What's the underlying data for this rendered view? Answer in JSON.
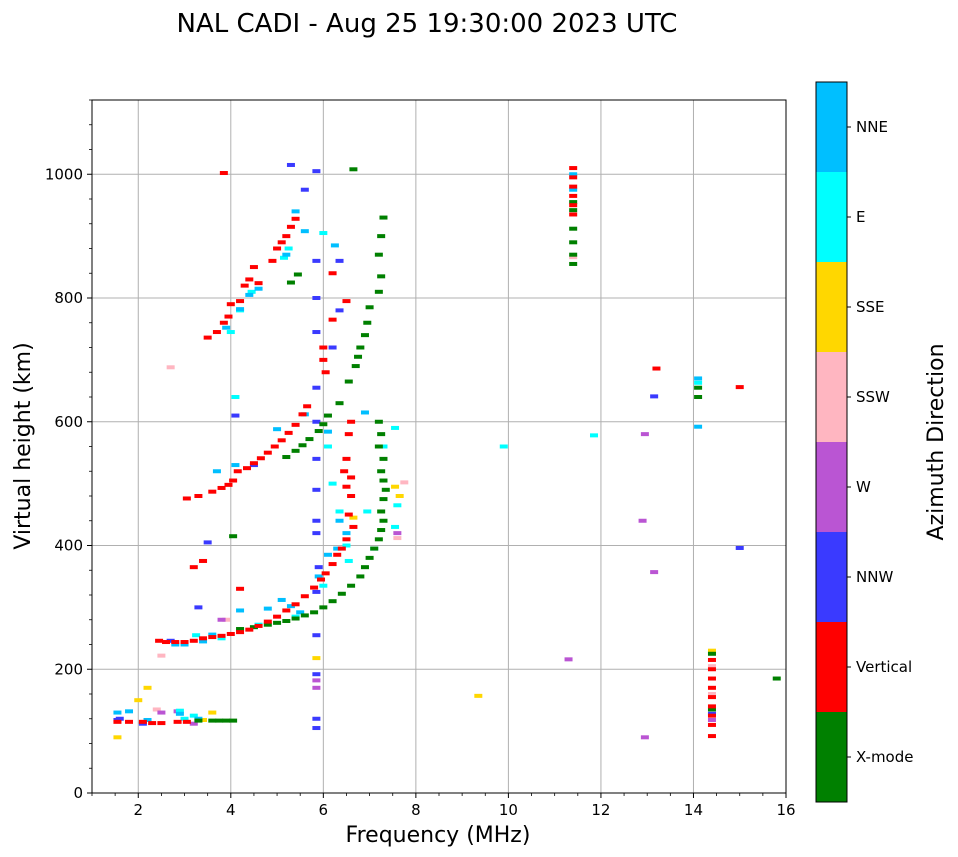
{
  "chart_data": {
    "type": "scatter",
    "title": "NAL CADI - Aug 25 19:30:00 2023 UTC",
    "xlabel": "Frequency (MHz)",
    "ylabel": "Virtual height (km)",
    "xlim": [
      1,
      16
    ],
    "ylim": [
      0,
      1120
    ],
    "xticks": [
      2,
      4,
      6,
      8,
      10,
      12,
      14,
      16
    ],
    "yticks": [
      0,
      200,
      400,
      600,
      800,
      1000
    ],
    "grid": true,
    "colorbar": {
      "title": "Azimuth Direction",
      "categories": [
        {
          "label": "NNE",
          "color": "#00bfff"
        },
        {
          "label": "E",
          "color": "#00ffff"
        },
        {
          "label": "SSE",
          "color": "#ffd700"
        },
        {
          "label": "SSW",
          "color": "#ffb6c1"
        },
        {
          "label": "W",
          "color": "#ba55d3"
        },
        {
          "label": "NNW",
          "color": "#3a3aff"
        },
        {
          "label": "Vertical",
          "color": "#ff0000"
        },
        {
          "label": "X-mode",
          "color": "#008000"
        }
      ]
    },
    "series": [
      {
        "name": "Vertical",
        "points": [
          [
            1.55,
            115
          ],
          [
            1.8,
            115
          ],
          [
            2.1,
            115
          ],
          [
            2.3,
            113
          ],
          [
            2.5,
            113
          ],
          [
            2.85,
            115
          ],
          [
            3.05,
            115
          ],
          [
            2.45,
            246
          ],
          [
            2.6,
            244
          ],
          [
            2.8,
            244
          ],
          [
            3.0,
            244
          ],
          [
            3.2,
            246
          ],
          [
            3.4,
            250
          ],
          [
            3.6,
            252
          ],
          [
            3.8,
            254
          ],
          [
            4.0,
            257
          ],
          [
            4.2,
            260
          ],
          [
            4.4,
            264
          ],
          [
            4.6,
            270
          ],
          [
            4.8,
            277
          ],
          [
            5.0,
            285
          ],
          [
            5.2,
            295
          ],
          [
            5.4,
            305
          ],
          [
            5.6,
            318
          ],
          [
            5.8,
            332
          ],
          [
            5.95,
            345
          ],
          [
            6.05,
            355
          ],
          [
            6.2,
            370
          ],
          [
            6.3,
            385
          ],
          [
            6.4,
            395
          ],
          [
            6.5,
            410
          ],
          [
            6.65,
            430
          ],
          [
            6.55,
            450
          ],
          [
            6.6,
            480
          ],
          [
            6.5,
            495
          ],
          [
            6.6,
            510
          ],
          [
            6.45,
            520
          ],
          [
            6.5,
            540
          ],
          [
            3.05,
            476
          ],
          [
            3.3,
            480
          ],
          [
            3.6,
            487
          ],
          [
            3.8,
            493
          ],
          [
            3.95,
            498
          ],
          [
            4.05,
            505
          ],
          [
            4.15,
            520
          ],
          [
            4.35,
            525
          ],
          [
            4.5,
            533
          ],
          [
            4.65,
            541
          ],
          [
            4.8,
            550
          ],
          [
            4.95,
            560
          ],
          [
            5.1,
            570
          ],
          [
            5.25,
            582
          ],
          [
            5.4,
            595
          ],
          [
            5.55,
            612
          ],
          [
            5.65,
            625
          ],
          [
            6.6,
            600
          ],
          [
            6.55,
            580
          ],
          [
            6.0,
            700
          ],
          [
            6.0,
            720
          ],
          [
            6.05,
            680
          ],
          [
            3.5,
            736
          ],
          [
            3.7,
            745
          ],
          [
            3.85,
            760
          ],
          [
            3.95,
            770
          ],
          [
            4.0,
            790
          ],
          [
            4.3,
            820
          ],
          [
            4.4,
            830
          ],
          [
            4.5,
            850
          ],
          [
            4.9,
            860
          ],
          [
            5.0,
            880
          ],
          [
            5.1,
            890
          ],
          [
            5.2,
            900
          ],
          [
            5.3,
            915
          ],
          [
            5.4,
            928
          ],
          [
            6.2,
            840
          ],
          [
            6.5,
            795
          ],
          [
            6.2,
            765
          ],
          [
            3.85,
            1002
          ],
          [
            4.2,
            795
          ],
          [
            4.6,
            824
          ],
          [
            3.2,
            365
          ],
          [
            3.4,
            375
          ],
          [
            4.2,
            330
          ],
          [
            11.4,
            1010
          ],
          [
            11.4,
            995
          ],
          [
            11.4,
            980
          ],
          [
            11.4,
            965
          ],
          [
            11.4,
            950
          ],
          [
            11.4,
            935
          ],
          [
            13.2,
            686
          ],
          [
            15.0,
            656
          ],
          [
            14.4,
            215
          ],
          [
            14.4,
            200
          ],
          [
            14.4,
            185
          ],
          [
            14.4,
            170
          ],
          [
            14.4,
            155
          ],
          [
            14.4,
            140
          ],
          [
            14.4,
            125
          ],
          [
            14.4,
            110
          ],
          [
            14.4,
            92
          ]
        ]
      },
      {
        "name": "X-mode",
        "points": [
          [
            3.6,
            117
          ],
          [
            3.75,
            117
          ],
          [
            3.9,
            117
          ],
          [
            4.05,
            117
          ],
          [
            3.3,
            117
          ],
          [
            4.2,
            265
          ],
          [
            4.5,
            268
          ],
          [
            4.8,
            272
          ],
          [
            5.0,
            275
          ],
          [
            5.2,
            278
          ],
          [
            5.4,
            282
          ],
          [
            5.6,
            287
          ],
          [
            5.8,
            292
          ],
          [
            6.0,
            300
          ],
          [
            6.2,
            310
          ],
          [
            6.4,
            322
          ],
          [
            6.6,
            335
          ],
          [
            6.8,
            350
          ],
          [
            6.9,
            365
          ],
          [
            7.0,
            380
          ],
          [
            7.1,
            395
          ],
          [
            7.2,
            410
          ],
          [
            7.25,
            425
          ],
          [
            7.3,
            440
          ],
          [
            7.25,
            455
          ],
          [
            7.3,
            475
          ],
          [
            7.35,
            490
          ],
          [
            7.3,
            505
          ],
          [
            7.25,
            520
          ],
          [
            7.3,
            540
          ],
          [
            7.2,
            560
          ],
          [
            7.25,
            580
          ],
          [
            7.2,
            600
          ],
          [
            5.2,
            543
          ],
          [
            5.4,
            553
          ],
          [
            5.55,
            562
          ],
          [
            5.7,
            572
          ],
          [
            5.9,
            585
          ],
          [
            6.0,
            596
          ],
          [
            6.1,
            610
          ],
          [
            6.35,
            630
          ],
          [
            6.55,
            665
          ],
          [
            6.7,
            690
          ],
          [
            6.75,
            705
          ],
          [
            6.8,
            720
          ],
          [
            6.9,
            740
          ],
          [
            6.95,
            760
          ],
          [
            7.0,
            785
          ],
          [
            7.2,
            810
          ],
          [
            7.25,
            835
          ],
          [
            7.2,
            870
          ],
          [
            7.25,
            900
          ],
          [
            7.3,
            930
          ],
          [
            5.45,
            838
          ],
          [
            5.3,
            825
          ],
          [
            6.65,
            1008
          ],
          [
            4.05,
            415
          ],
          [
            11.4,
            855
          ],
          [
            11.4,
            870
          ],
          [
            11.4,
            890
          ],
          [
            11.4,
            912
          ],
          [
            11.4,
            942
          ],
          [
            11.4,
            955
          ],
          [
            14.1,
            640
          ],
          [
            14.1,
            655
          ],
          [
            14.4,
            225
          ],
          [
            14.4,
            135
          ],
          [
            15.8,
            185
          ]
        ]
      },
      {
        "name": "NNE",
        "points": [
          [
            1.55,
            130
          ],
          [
            1.8,
            132
          ],
          [
            2.2,
            118
          ],
          [
            2.9,
            128
          ],
          [
            3.3,
            120
          ],
          [
            2.8,
            240
          ],
          [
            3.0,
            240
          ],
          [
            3.4,
            245
          ],
          [
            3.6,
            256
          ],
          [
            4.2,
            295
          ],
          [
            4.8,
            298
          ],
          [
            5.1,
            312
          ],
          [
            5.3,
            302
          ],
          [
            5.5,
            292
          ],
          [
            5.9,
            350
          ],
          [
            6.1,
            385
          ],
          [
            6.3,
            395
          ],
          [
            6.5,
            420
          ],
          [
            6.35,
            440
          ],
          [
            3.7,
            520
          ],
          [
            4.1,
            530
          ],
          [
            5.6,
            612
          ],
          [
            6.1,
            584
          ],
          [
            5.0,
            588
          ],
          [
            3.9,
            752
          ],
          [
            4.2,
            782
          ],
          [
            4.4,
            805
          ],
          [
            4.6,
            815
          ],
          [
            5.2,
            870
          ],
          [
            5.6,
            908
          ],
          [
            6.25,
            885
          ],
          [
            5.4,
            940
          ],
          [
            6.9,
            615
          ],
          [
            11.4,
            1000
          ],
          [
            11.4,
            975
          ],
          [
            14.1,
            670
          ],
          [
            14.1,
            592
          ]
        ]
      },
      {
        "name": "E",
        "points": [
          [
            2.9,
            133
          ],
          [
            3.0,
            120
          ],
          [
            3.2,
            125
          ],
          [
            3.25,
            255
          ],
          [
            3.8,
            250
          ],
          [
            4.6,
            272
          ],
          [
            5.4,
            285
          ],
          [
            6.0,
            335
          ],
          [
            6.55,
            375
          ],
          [
            7.1,
            395
          ],
          [
            7.3,
            560
          ],
          [
            7.55,
            590
          ],
          [
            7.6,
            465
          ],
          [
            7.55,
            430
          ],
          [
            6.95,
            455
          ],
          [
            6.2,
            500
          ],
          [
            6.5,
            400
          ],
          [
            6.35,
            455
          ],
          [
            6.1,
            560
          ],
          [
            4.0,
            745
          ],
          [
            4.2,
            780
          ],
          [
            4.45,
            810
          ],
          [
            5.25,
            880
          ],
          [
            6.0,
            905
          ],
          [
            5.15,
            865
          ],
          [
            4.1,
            640
          ],
          [
            9.9,
            560
          ],
          [
            11.85,
            578
          ],
          [
            14.1,
            663
          ]
        ]
      },
      {
        "name": "SSE",
        "points": [
          [
            1.55,
            90
          ],
          [
            2.0,
            150
          ],
          [
            2.2,
            170
          ],
          [
            3.6,
            130
          ],
          [
            3.4,
            118
          ],
          [
            6.65,
            445
          ],
          [
            7.65,
            480
          ],
          [
            7.55,
            495
          ],
          [
            5.85,
            218
          ],
          [
            9.35,
            157
          ],
          [
            14.4,
            230
          ]
        ]
      },
      {
        "name": "SSW",
        "points": [
          [
            2.4,
            135
          ],
          [
            2.5,
            222
          ],
          [
            2.7,
            688
          ],
          [
            3.9,
            280
          ],
          [
            7.75,
            502
          ],
          [
            7.6,
            412
          ],
          [
            11.4,
            866
          ],
          [
            14.4,
            205
          ],
          [
            14.4,
            160
          ]
        ]
      },
      {
        "name": "W",
        "points": [
          [
            2.5,
            130
          ],
          [
            2.85,
            132
          ],
          [
            3.2,
            112
          ],
          [
            3.8,
            280
          ],
          [
            5.85,
            170
          ],
          [
            5.85,
            182
          ],
          [
            7.6,
            420
          ],
          [
            11.3,
            216
          ],
          [
            12.9,
            440
          ],
          [
            12.95,
            580
          ],
          [
            13.15,
            357
          ],
          [
            12.95,
            90
          ],
          [
            14.4,
            118
          ]
        ]
      },
      {
        "name": "NNW",
        "points": [
          [
            1.6,
            120
          ],
          [
            1.55,
            118
          ],
          [
            2.1,
            112
          ],
          [
            2.7,
            246
          ],
          [
            3.3,
            300
          ],
          [
            5.85,
            105
          ],
          [
            5.85,
            120
          ],
          [
            5.85,
            192
          ],
          [
            5.85,
            255
          ],
          [
            5.85,
            325
          ],
          [
            5.9,
            365
          ],
          [
            5.85,
            420
          ],
          [
            5.85,
            440
          ],
          [
            5.85,
            490
          ],
          [
            5.85,
            540
          ],
          [
            5.85,
            600
          ],
          [
            5.85,
            655
          ],
          [
            5.85,
            745
          ],
          [
            5.85,
            800
          ],
          [
            5.85,
            860
          ],
          [
            5.85,
            1005
          ],
          [
            6.35,
            860
          ],
          [
            6.35,
            780
          ],
          [
            6.2,
            720
          ],
          [
            4.5,
            530
          ],
          [
            4.1,
            610
          ],
          [
            5.3,
            1015
          ],
          [
            5.6,
            975
          ],
          [
            13.15,
            641
          ],
          [
            15.0,
            396
          ],
          [
            14.4,
            128
          ],
          [
            3.5,
            405
          ]
        ]
      }
    ]
  }
}
